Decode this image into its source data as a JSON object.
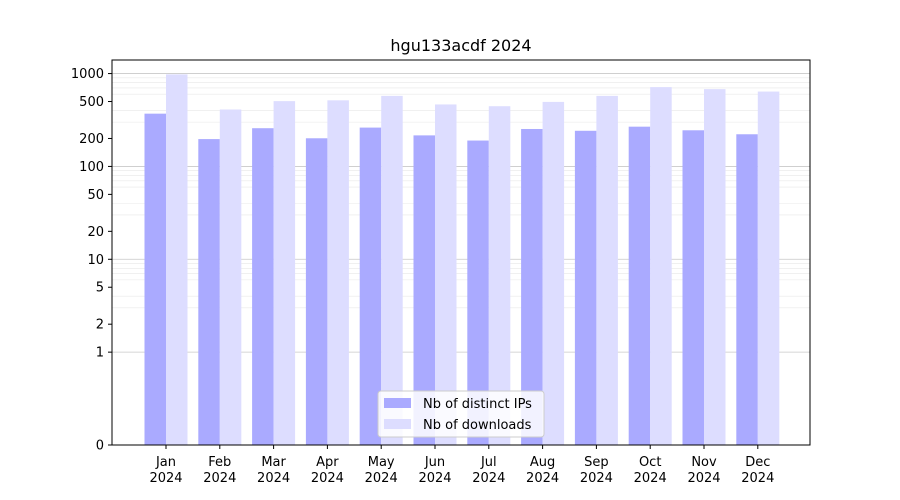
{
  "chart_data": {
    "type": "bar",
    "title": "hgu133acdf 2024",
    "xlabel": "",
    "ylabel": "",
    "yscale": "symlog",
    "ylim": [
      0,
      1400
    ],
    "grid": "y-major-and-minor",
    "legend_position": "bottom-center",
    "categories": [
      {
        "month": "Jan",
        "year": "2024"
      },
      {
        "month": "Feb",
        "year": "2024"
      },
      {
        "month": "Mar",
        "year": "2024"
      },
      {
        "month": "Apr",
        "year": "2024"
      },
      {
        "month": "May",
        "year": "2024"
      },
      {
        "month": "Jun",
        "year": "2024"
      },
      {
        "month": "Jul",
        "year": "2024"
      },
      {
        "month": "Aug",
        "year": "2024"
      },
      {
        "month": "Sep",
        "year": "2024"
      },
      {
        "month": "Oct",
        "year": "2024"
      },
      {
        "month": "Nov",
        "year": "2024"
      },
      {
        "month": "Dec",
        "year": "2024"
      }
    ],
    "yticks": [
      {
        "value": 0,
        "label": "0"
      },
      {
        "value": 1,
        "label": "1"
      },
      {
        "value": 2,
        "label": "2"
      },
      {
        "value": 5,
        "label": "5"
      },
      {
        "value": 10,
        "label": "10"
      },
      {
        "value": 20,
        "label": "20"
      },
      {
        "value": 50,
        "label": "50"
      },
      {
        "value": 100,
        "label": "100"
      },
      {
        "value": 200,
        "label": "200"
      },
      {
        "value": 500,
        "label": "500"
      },
      {
        "value": 1000,
        "label": "1000"
      }
    ],
    "series": [
      {
        "name": "Nb of distinct IPs",
        "color": "#aaaaff",
        "values": [
          370,
          197,
          258,
          201,
          262,
          216,
          190,
          253,
          242,
          268,
          245,
          222
        ]
      },
      {
        "name": "Nb of downloads",
        "color": "#ddddff",
        "values": [
          980,
          410,
          505,
          515,
          575,
          465,
          445,
          495,
          575,
          715,
          680,
          640
        ]
      }
    ]
  }
}
